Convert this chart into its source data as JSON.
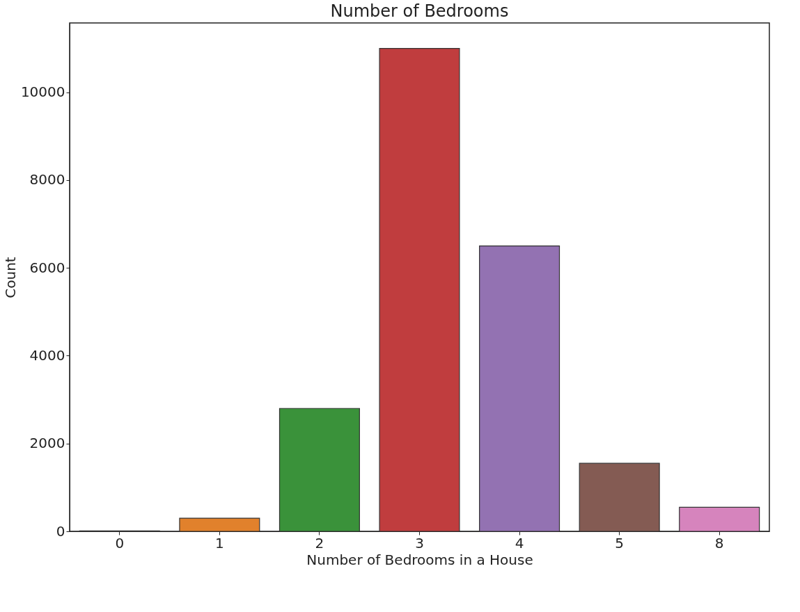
{
  "chart_data": {
    "type": "bar",
    "title": "Number of Bedrooms",
    "xlabel": "Number of Bedrooms in a House",
    "ylabel": "Count",
    "categories": [
      "0",
      "1",
      "2",
      "3",
      "4",
      "5",
      "8"
    ],
    "values": [
      10,
      300,
      2800,
      11000,
      6500,
      1550,
      550
    ],
    "colors": [
      "#3274a1",
      "#e1812c",
      "#3a923a",
      "#c03d3e",
      "#9372b2",
      "#845b53",
      "#d684bd"
    ],
    "ylim": [
      0,
      11580
    ],
    "yticks": [
      0,
      2000,
      4000,
      6000,
      8000,
      10000
    ],
    "grid": false,
    "legend": false
  }
}
